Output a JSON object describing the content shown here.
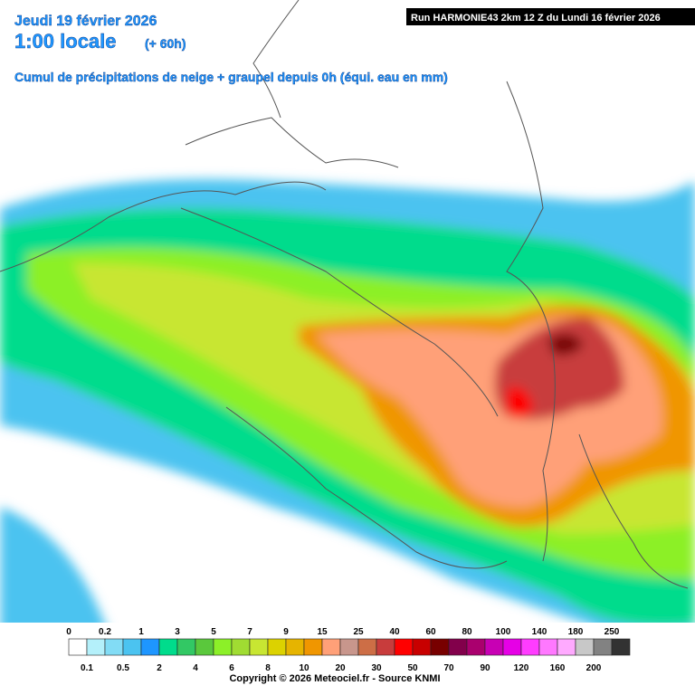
{
  "header": {
    "date": "Jeudi 19 février 2026",
    "time": "1:00 locale",
    "lead": "(+ 60h)",
    "subtitle": "Cumul de précipitations de neige + graupel depuis 0h (équi. eau en mm)"
  },
  "run": "Run HARMONIE43 2km 12 Z du Lundi 16 février 2026",
  "legend": {
    "items": [
      {
        "value": 0,
        "color": "#ffffff"
      },
      {
        "value": 0.1,
        "color": "#b4f0fa"
      },
      {
        "value": 0.2,
        "color": "#82dcf5"
      },
      {
        "value": 0.5,
        "color": "#4bc3f0"
      },
      {
        "value": 1,
        "color": "#1e96ff"
      },
      {
        "value": 2,
        "color": "#00dc8c"
      },
      {
        "value": 3,
        "color": "#32c864"
      },
      {
        "value": 4,
        "color": "#5ac83c"
      },
      {
        "value": 5,
        "color": "#8cf028"
      },
      {
        "value": 6,
        "color": "#a0dc32"
      },
      {
        "value": 7,
        "color": "#c8e632"
      },
      {
        "value": 8,
        "color": "#dcd200"
      },
      {
        "value": 9,
        "color": "#e6b400"
      },
      {
        "value": 10,
        "color": "#f09600"
      },
      {
        "value": 15,
        "color": "#ffa078"
      },
      {
        "value": 20,
        "color": "#c8968c"
      },
      {
        "value": 25,
        "color": "#cd6e46"
      },
      {
        "value": 30,
        "color": "#c83c3c"
      },
      {
        "value": 40,
        "color": "#ff0000"
      },
      {
        "value": 50,
        "color": "#c80000"
      },
      {
        "value": 60,
        "color": "#780000"
      },
      {
        "value": 70,
        "color": "#82004b"
      },
      {
        "value": 80,
        "color": "#aa006e"
      },
      {
        "value": 90,
        "color": "#c800b4"
      },
      {
        "value": 100,
        "color": "#e600e6"
      },
      {
        "value": 120,
        "color": "#ff3cff"
      },
      {
        "value": 140,
        "color": "#ff78ff"
      },
      {
        "value": 160,
        "color": "#ffaaff"
      },
      {
        "value": 180,
        "color": "#c8c8c8"
      },
      {
        "value": 200,
        "color": "#828282"
      },
      {
        "value": 250,
        "color": "#323232"
      }
    ]
  },
  "copyright": "Copyright © 2026 Meteociel.fr - Source KNMI"
}
